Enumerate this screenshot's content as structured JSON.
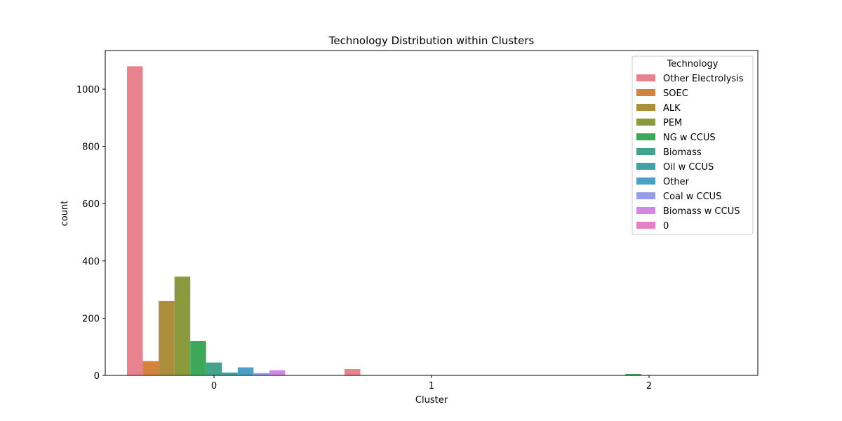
{
  "chart_data": {
    "type": "bar",
    "title": "Technology Distribution within Clusters",
    "xlabel": "Cluster",
    "ylabel": "count",
    "categories": [
      "0",
      "1",
      "2"
    ],
    "ylim": [
      0,
      1135
    ],
    "yticks": [
      0,
      200,
      400,
      600,
      800,
      1000
    ],
    "grid": false,
    "legend": {
      "title": "Technology",
      "placement": "top-right"
    },
    "series": [
      {
        "name": "Other Electrolysis",
        "color": "#e8828f",
        "values": [
          1080,
          22,
          0
        ]
      },
      {
        "name": "SOEC",
        "color": "#d2843f",
        "values": [
          50,
          0,
          0
        ]
      },
      {
        "name": "ALK",
        "color": "#ad8e3d",
        "values": [
          260,
          0,
          0
        ]
      },
      {
        "name": "PEM",
        "color": "#8c9a3e",
        "values": [
          345,
          0,
          0
        ]
      },
      {
        "name": "NG w CCUS",
        "color": "#3da75a",
        "values": [
          120,
          0,
          5
        ]
      },
      {
        "name": "Biomass",
        "color": "#42a48c",
        "values": [
          45,
          0,
          0
        ]
      },
      {
        "name": "Oil w CCUS",
        "color": "#42a3a6",
        "values": [
          10,
          0,
          0
        ]
      },
      {
        "name": "Other",
        "color": "#4aa0c9",
        "values": [
          28,
          0,
          0
        ]
      },
      {
        "name": "Coal w CCUS",
        "color": "#949ee6",
        "values": [
          8,
          0,
          0
        ]
      },
      {
        "name": "Biomass w CCUS",
        "color": "#d486e6",
        "values": [
          18,
          0,
          0
        ]
      },
      {
        "name": "0",
        "color": "#e47fc8",
        "values": [
          0,
          0,
          0
        ]
      }
    ]
  }
}
